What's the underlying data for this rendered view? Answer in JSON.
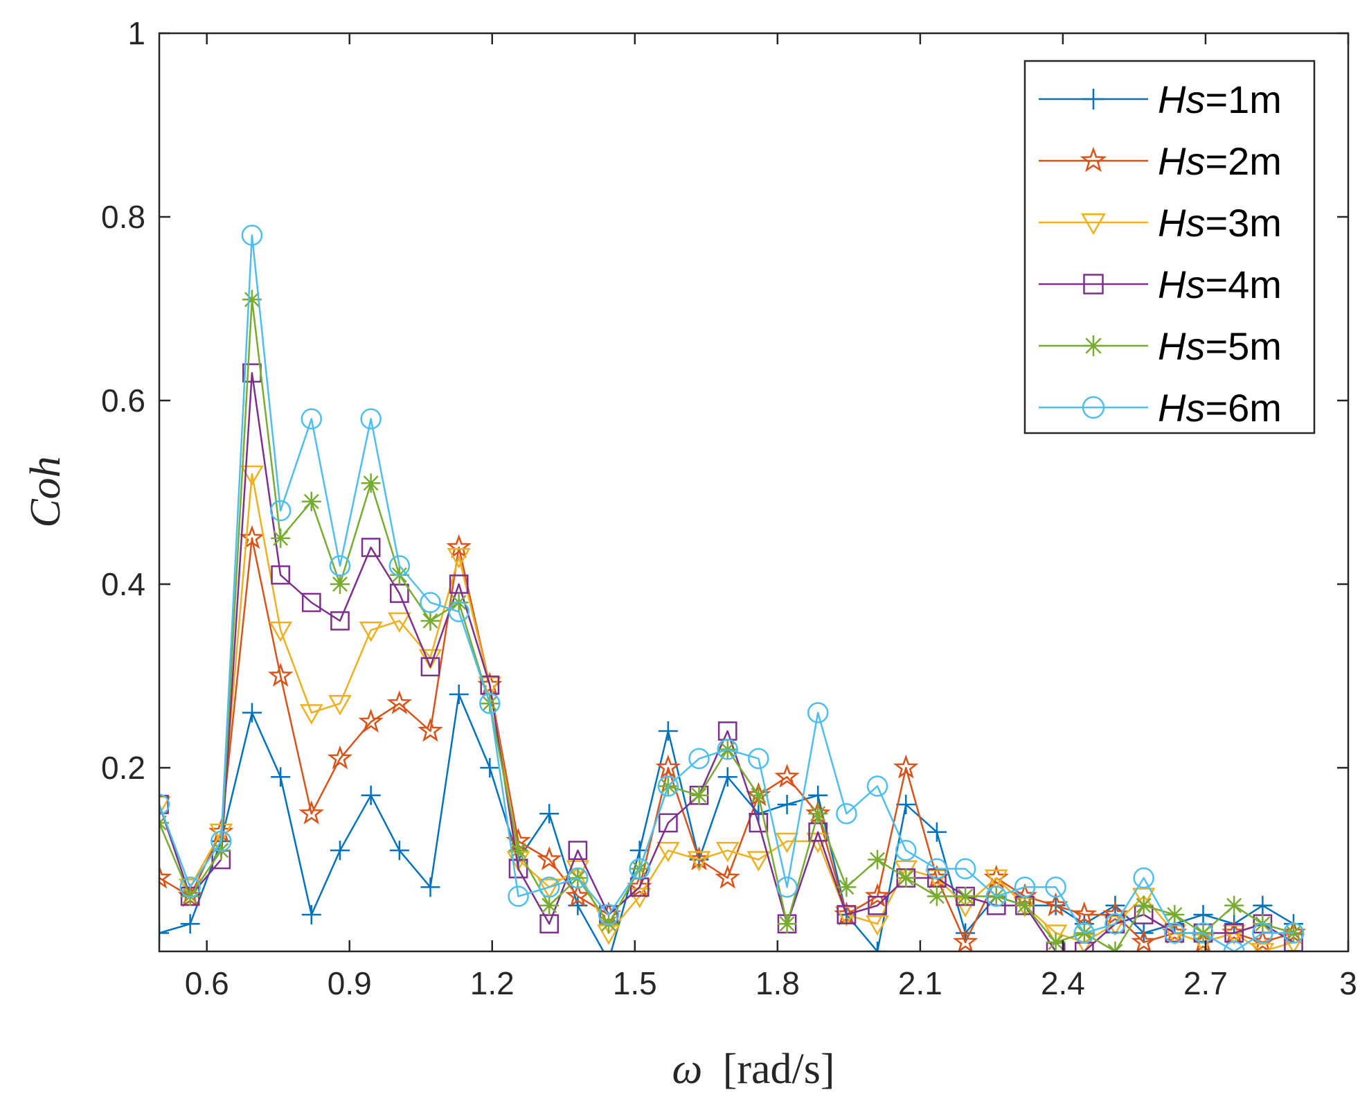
{
  "chart_data": {
    "type": "line",
    "title": "",
    "xlabel_symbol": "ω",
    "xlabel_unit": "[rad/s]",
    "ylabel": "Coh",
    "xlim": [
      0.5,
      3.0
    ],
    "ylim": [
      0.0,
      1.0
    ],
    "xticks": [
      0.6,
      0.9,
      1.2,
      1.5,
      1.8,
      2.1,
      2.4,
      2.7,
      3.0
    ],
    "xtick_labels": [
      "0.6",
      "0.9",
      "1.2",
      "1.5",
      "1.8",
      "2.1",
      "2.4",
      "2.7",
      "3"
    ],
    "yticks": [
      0.2,
      0.4,
      0.6,
      0.8,
      1.0
    ],
    "ytick_labels": [
      "0.2",
      "0.4",
      "0.6",
      "0.8",
      "1"
    ],
    "legend_position": "top-right",
    "x": [
      0.5,
      0.565,
      0.63,
      0.695,
      0.755,
      0.82,
      0.88,
      0.945,
      1.005,
      1.07,
      1.13,
      1.195,
      1.255,
      1.32,
      1.38,
      1.445,
      1.51,
      1.57,
      1.635,
      1.695,
      1.76,
      1.82,
      1.885,
      1.945,
      2.01,
      2.07,
      2.135,
      2.195,
      2.26,
      2.32,
      2.385,
      2.445,
      2.51,
      2.57,
      2.635,
      2.695,
      2.76,
      2.82,
      2.885
    ],
    "series": [
      {
        "name_italic": "Hs",
        "name_suffix": "=1m",
        "color": "#0072BD",
        "marker": "plus",
        "values": [
          0.02,
          0.03,
          0.12,
          0.26,
          0.19,
          0.04,
          0.11,
          0.17,
          0.11,
          0.07,
          0.28,
          0.2,
          0.1,
          0.15,
          0.05,
          -0.01,
          0.11,
          0.24,
          0.1,
          0.19,
          0.15,
          0.16,
          0.17,
          0.04,
          0.0,
          0.16,
          0.13,
          0.02,
          0.06,
          0.05,
          0.05,
          0.03,
          0.05,
          0.02,
          0.03,
          0.04,
          0.03,
          0.05,
          0.03
        ]
      },
      {
        "name_italic": "Hs",
        "name_suffix": "=2m",
        "color": "#D95319",
        "marker": "star",
        "values": [
          0.08,
          0.06,
          0.13,
          0.45,
          0.3,
          0.15,
          0.21,
          0.25,
          0.27,
          0.24,
          0.44,
          0.29,
          0.12,
          0.1,
          0.06,
          0.04,
          0.07,
          0.2,
          0.1,
          0.08,
          0.17,
          0.19,
          0.15,
          0.04,
          0.06,
          0.2,
          0.08,
          0.01,
          0.08,
          0.06,
          0.05,
          0.04,
          0.04,
          0.01,
          0.02,
          0.01,
          0.02,
          0.01,
          0.02
        ]
      },
      {
        "name_italic": "Hs",
        "name_suffix": "=3m",
        "color": "#EDB120",
        "marker": "triangle-down",
        "values": [
          0.16,
          0.07,
          0.13,
          0.52,
          0.35,
          0.26,
          0.27,
          0.35,
          0.36,
          0.32,
          0.43,
          0.29,
          0.1,
          0.07,
          0.09,
          0.02,
          0.06,
          0.11,
          0.1,
          0.11,
          0.1,
          0.12,
          0.12,
          0.04,
          0.03,
          0.09,
          0.08,
          0.05,
          0.08,
          0.05,
          0.02,
          0.01,
          0.03,
          0.06,
          0.02,
          0.01,
          0.02,
          0.0,
          0.01
        ]
      },
      {
        "name_italic": "Hs",
        "name_suffix": "=4m",
        "color": "#7E2F8E",
        "marker": "square",
        "values": [
          0.16,
          0.06,
          0.1,
          0.63,
          0.41,
          0.38,
          0.36,
          0.44,
          0.39,
          0.31,
          0.4,
          0.29,
          0.09,
          0.03,
          0.11,
          0.04,
          0.07,
          0.14,
          0.17,
          0.24,
          0.14,
          0.03,
          0.13,
          0.04,
          0.05,
          0.08,
          0.08,
          0.06,
          0.05,
          0.05,
          0.0,
          0.0,
          0.03,
          0.04,
          0.02,
          0.02,
          0.02,
          0.03,
          0.01
        ]
      },
      {
        "name_italic": "Hs",
        "name_suffix": "=5m",
        "color": "#77AC30",
        "marker": "asterisk",
        "values": [
          0.14,
          0.06,
          0.11,
          0.71,
          0.45,
          0.49,
          0.4,
          0.51,
          0.41,
          0.36,
          0.38,
          0.27,
          0.11,
          0.05,
          0.08,
          0.03,
          0.09,
          0.18,
          0.17,
          0.22,
          0.17,
          0.03,
          0.15,
          0.07,
          0.1,
          0.08,
          0.06,
          0.06,
          0.06,
          0.05,
          0.01,
          0.02,
          0.0,
          0.05,
          0.04,
          0.02,
          0.05,
          0.03,
          0.02
        ]
      },
      {
        "name_italic": "Hs",
        "name_suffix": "=6m",
        "color": "#4DBEEE",
        "marker": "circle",
        "values": [
          0.16,
          0.07,
          0.12,
          0.78,
          0.48,
          0.58,
          0.42,
          0.58,
          0.42,
          0.38,
          0.37,
          0.27,
          0.06,
          0.07,
          0.08,
          0.04,
          0.09,
          0.18,
          0.21,
          0.22,
          0.21,
          0.07,
          0.26,
          0.15,
          0.18,
          0.11,
          0.09,
          0.09,
          0.06,
          0.07,
          0.07,
          0.02,
          0.03,
          0.08,
          0.02,
          0.02,
          0.0,
          0.02,
          0.02
        ]
      }
    ]
  }
}
